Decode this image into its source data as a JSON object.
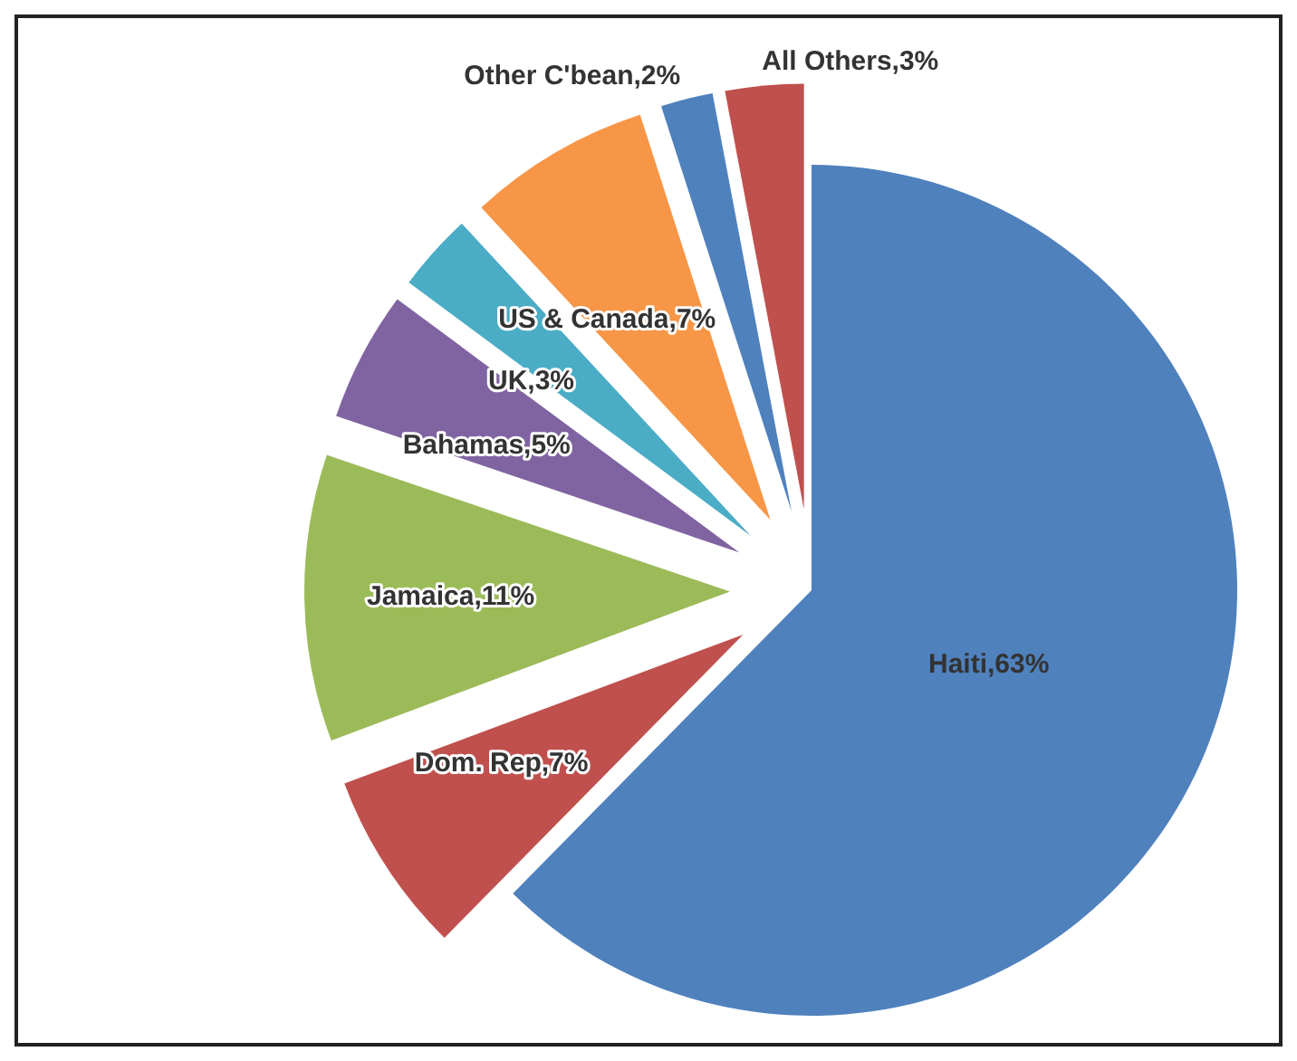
{
  "chart_data": {
    "type": "pie",
    "categories": [
      "Haiti",
      "Dom. Rep",
      "Jamaica",
      "Bahamas",
      "UK",
      "US & Canada",
      "Other C'bean",
      "All Others"
    ],
    "values": [
      63,
      7,
      11,
      5,
      3,
      7,
      2,
      3
    ],
    "colors": [
      "#4f81bd",
      "#c0504d",
      "#9bbb59",
      "#8064a2",
      "#4bacc6",
      "#f79646",
      "#4f81bd",
      "#c0504d"
    ],
    "value_labels": [
      ",63%",
      ",7%",
      ",11%",
      ",5%",
      ",3%",
      ",7%",
      ",2%",
      ",3%"
    ]
  }
}
